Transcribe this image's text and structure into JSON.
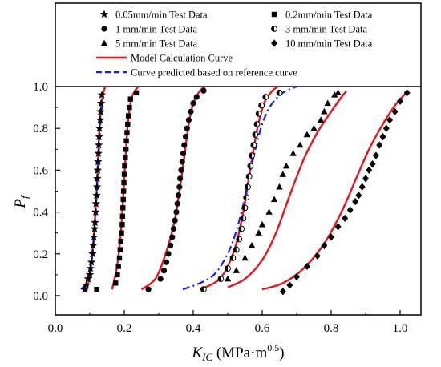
{
  "chart_data": {
    "type": "scatter",
    "xlabel": "K",
    "xlabel_sub": "IC",
    "xlabel_unit": " (MPa·m",
    "xlabel_sup": "0.5",
    "xlabel_close": ")",
    "ylabel": "P",
    "ylabel_sub": "f",
    "xlim": [
      0.0,
      1.08
    ],
    "ylim": [
      -0.05,
      1.0
    ],
    "xticks": [
      "0.0",
      "0.2",
      "0.4",
      "0.6",
      "0.8",
      "1.0"
    ],
    "yticks": [
      "0.0",
      "0.2",
      "0.4",
      "0.6",
      "0.8",
      "1.0"
    ],
    "grid": false,
    "legend_position": "top, above plot area",
    "series": [
      {
        "name": "0.05mm/min Test Data",
        "marker": "star",
        "points": [
          [
            0.085,
            0.03
          ],
          [
            0.09,
            0.05
          ],
          [
            0.095,
            0.08
          ],
          [
            0.1,
            0.1
          ],
          [
            0.102,
            0.13
          ],
          [
            0.105,
            0.16
          ],
          [
            0.108,
            0.2
          ],
          [
            0.11,
            0.24
          ],
          [
            0.112,
            0.28
          ],
          [
            0.114,
            0.32
          ],
          [
            0.115,
            0.35
          ],
          [
            0.117,
            0.4
          ],
          [
            0.118,
            0.44
          ],
          [
            0.12,
            0.48
          ],
          [
            0.121,
            0.52
          ],
          [
            0.122,
            0.56
          ],
          [
            0.123,
            0.6
          ],
          [
            0.124,
            0.64
          ],
          [
            0.125,
            0.68
          ],
          [
            0.126,
            0.72
          ],
          [
            0.127,
            0.76
          ],
          [
            0.128,
            0.8
          ],
          [
            0.13,
            0.84
          ],
          [
            0.131,
            0.88
          ],
          [
            0.133,
            0.92
          ],
          [
            0.135,
            0.96
          ]
        ]
      },
      {
        "name": "0.2mm/min Test Data",
        "marker": "square",
        "points": [
          [
            0.12,
            0.03
          ],
          [
            0.175,
            0.06
          ],
          [
            0.18,
            0.1
          ],
          [
            0.183,
            0.14
          ],
          [
            0.186,
            0.18
          ],
          [
            0.188,
            0.22
          ],
          [
            0.19,
            0.26
          ],
          [
            0.192,
            0.3
          ],
          [
            0.194,
            0.34
          ],
          [
            0.195,
            0.38
          ],
          [
            0.196,
            0.42
          ],
          [
            0.197,
            0.46
          ],
          [
            0.198,
            0.5
          ],
          [
            0.199,
            0.54
          ],
          [
            0.2,
            0.58
          ],
          [
            0.201,
            0.62
          ],
          [
            0.203,
            0.66
          ],
          [
            0.205,
            0.7
          ],
          [
            0.206,
            0.74
          ],
          [
            0.208,
            0.78
          ],
          [
            0.21,
            0.82
          ],
          [
            0.212,
            0.86
          ],
          [
            0.215,
            0.9
          ],
          [
            0.218,
            0.94
          ],
          [
            0.235,
            0.97
          ]
        ]
      },
      {
        "name": "1   mm/min Test Data",
        "marker": "circle",
        "points": [
          [
            0.27,
            0.03
          ],
          [
            0.305,
            0.08
          ],
          [
            0.315,
            0.12
          ],
          [
            0.322,
            0.16
          ],
          [
            0.328,
            0.2
          ],
          [
            0.334,
            0.24
          ],
          [
            0.339,
            0.28
          ],
          [
            0.343,
            0.32
          ],
          [
            0.347,
            0.36
          ],
          [
            0.351,
            0.4
          ],
          [
            0.354,
            0.44
          ],
          [
            0.357,
            0.48
          ],
          [
            0.36,
            0.52
          ],
          [
            0.362,
            0.56
          ],
          [
            0.365,
            0.6
          ],
          [
            0.368,
            0.64
          ],
          [
            0.371,
            0.68
          ],
          [
            0.374,
            0.72
          ],
          [
            0.378,
            0.76
          ],
          [
            0.382,
            0.8
          ],
          [
            0.387,
            0.84
          ],
          [
            0.393,
            0.88
          ],
          [
            0.4,
            0.92
          ],
          [
            0.41,
            0.95
          ],
          [
            0.43,
            0.98
          ]
        ]
      },
      {
        "name": "3   mm/min Test Data",
        "marker": "half-circle",
        "points": [
          [
            0.43,
            0.03
          ],
          [
            0.48,
            0.08
          ],
          [
            0.5,
            0.13
          ],
          [
            0.515,
            0.18
          ],
          [
            0.525,
            0.22
          ],
          [
            0.533,
            0.27
          ],
          [
            0.54,
            0.32
          ],
          [
            0.545,
            0.37
          ],
          [
            0.55,
            0.42
          ],
          [
            0.554,
            0.47
          ],
          [
            0.558,
            0.52
          ],
          [
            0.562,
            0.57
          ],
          [
            0.566,
            0.62
          ],
          [
            0.57,
            0.67
          ],
          [
            0.575,
            0.72
          ],
          [
            0.58,
            0.77
          ],
          [
            0.585,
            0.82
          ],
          [
            0.59,
            0.87
          ],
          [
            0.598,
            0.91
          ],
          [
            0.61,
            0.95
          ],
          [
            0.65,
            0.97
          ]
        ]
      },
      {
        "name": "5   mm/min Test Data",
        "marker": "triangle",
        "points": [
          [
            0.5,
            0.08
          ],
          [
            0.525,
            0.12
          ],
          [
            0.55,
            0.18
          ],
          [
            0.57,
            0.24
          ],
          [
            0.59,
            0.3
          ],
          [
            0.6,
            0.34
          ],
          [
            0.62,
            0.4
          ],
          [
            0.635,
            0.46
          ],
          [
            0.65,
            0.52
          ],
          [
            0.66,
            0.58
          ],
          [
            0.67,
            0.62
          ],
          [
            0.69,
            0.68
          ],
          [
            0.71,
            0.72
          ],
          [
            0.73,
            0.77
          ],
          [
            0.75,
            0.8
          ],
          [
            0.77,
            0.84
          ],
          [
            0.78,
            0.88
          ],
          [
            0.79,
            0.92
          ],
          [
            0.81,
            0.96
          ],
          [
            0.82,
            0.97
          ]
        ]
      },
      {
        "name": "10 mm/min Test Data",
        "marker": "diamond",
        "points": [
          [
            0.66,
            0.02
          ],
          [
            0.68,
            0.05
          ],
          [
            0.7,
            0.09
          ],
          [
            0.73,
            0.14
          ],
          [
            0.76,
            0.19
          ],
          [
            0.78,
            0.24
          ],
          [
            0.8,
            0.28
          ],
          [
            0.82,
            0.33
          ],
          [
            0.84,
            0.37
          ],
          [
            0.855,
            0.41
          ],
          [
            0.87,
            0.45
          ],
          [
            0.88,
            0.48
          ],
          [
            0.89,
            0.52
          ],
          [
            0.9,
            0.56
          ],
          [
            0.91,
            0.6
          ],
          [
            0.92,
            0.63
          ],
          [
            0.93,
            0.67
          ],
          [
            0.94,
            0.72
          ],
          [
            0.95,
            0.76
          ],
          [
            0.96,
            0.8
          ],
          [
            0.97,
            0.84
          ],
          [
            0.985,
            0.88
          ],
          [
            1.0,
            0.93
          ],
          [
            1.02,
            0.97
          ]
        ]
      }
    ],
    "curves": [
      {
        "name": "Model Calculation Curve",
        "style": "solid",
        "color": "#e8141b",
        "segments": [
          [
            [
              0.09,
              0.02
            ],
            [
              0.1,
              0.1
            ],
            [
              0.11,
              0.25
            ],
            [
              0.12,
              0.5
            ],
            [
              0.125,
              0.7
            ],
            [
              0.13,
              0.85
            ],
            [
              0.138,
              0.96
            ],
            [
              0.145,
              1.0
            ]
          ],
          [
            [
              0.165,
              0.03
            ],
            [
              0.18,
              0.15
            ],
            [
              0.19,
              0.3
            ],
            [
              0.198,
              0.5
            ],
            [
              0.205,
              0.7
            ],
            [
              0.212,
              0.85
            ],
            [
              0.222,
              0.95
            ],
            [
              0.24,
              1.0
            ]
          ],
          [
            [
              0.25,
              0.03
            ],
            [
              0.29,
              0.08
            ],
            [
              0.32,
              0.2
            ],
            [
              0.345,
              0.35
            ],
            [
              0.36,
              0.5
            ],
            [
              0.373,
              0.65
            ],
            [
              0.385,
              0.8
            ],
            [
              0.4,
              0.92
            ],
            [
              0.42,
              0.98
            ],
            [
              0.435,
              1.0
            ]
          ],
          [
            [
              0.42,
              0.03
            ],
            [
              0.47,
              0.07
            ],
            [
              0.5,
              0.14
            ],
            [
              0.525,
              0.25
            ],
            [
              0.545,
              0.4
            ],
            [
              0.56,
              0.55
            ],
            [
              0.575,
              0.7
            ],
            [
              0.59,
              0.83
            ],
            [
              0.608,
              0.93
            ],
            [
              0.63,
              0.98
            ],
            [
              0.645,
              1.0
            ]
          ],
          [
            [
              0.5,
              0.04
            ],
            [
              0.55,
              0.08
            ],
            [
              0.6,
              0.17
            ],
            [
              0.64,
              0.3
            ],
            [
              0.68,
              0.48
            ],
            [
              0.72,
              0.65
            ],
            [
              0.76,
              0.78
            ],
            [
              0.8,
              0.88
            ],
            [
              0.83,
              0.95
            ],
            [
              0.845,
              0.98
            ]
          ],
          [
            [
              0.6,
              0.03
            ],
            [
              0.66,
              0.06
            ],
            [
              0.72,
              0.13
            ],
            [
              0.78,
              0.25
            ],
            [
              0.83,
              0.4
            ],
            [
              0.87,
              0.55
            ],
            [
              0.91,
              0.7
            ],
            [
              0.95,
              0.82
            ],
            [
              0.99,
              0.92
            ],
            [
              1.025,
              0.98
            ]
          ]
        ]
      },
      {
        "name": "Curve predicted based on reference curve",
        "style": "dashed",
        "color": "#1c1ce8",
        "segments": [
          [
            [
              0.075,
              0.03
            ],
            [
              0.09,
              0.06
            ],
            [
              0.1,
              0.1
            ],
            [
              0.108,
              0.2
            ],
            [
              0.113,
              0.3
            ],
            [
              0.118,
              0.42
            ],
            [
              0.122,
              0.55
            ],
            [
              0.126,
              0.68
            ],
            [
              0.13,
              0.8
            ],
            [
              0.135,
              0.9
            ],
            [
              0.14,
              0.96
            ]
          ],
          [
            [
              0.37,
              0.03
            ],
            [
              0.42,
              0.06
            ],
            [
              0.46,
              0.1
            ],
            [
              0.49,
              0.17
            ],
            [
              0.515,
              0.26
            ],
            [
              0.54,
              0.4
            ],
            [
              0.56,
              0.55
            ],
            [
              0.58,
              0.7
            ],
            [
              0.6,
              0.82
            ],
            [
              0.625,
              0.91
            ],
            [
              0.66,
              0.97
            ],
            [
              0.7,
              1.0
            ]
          ]
        ]
      }
    ]
  }
}
